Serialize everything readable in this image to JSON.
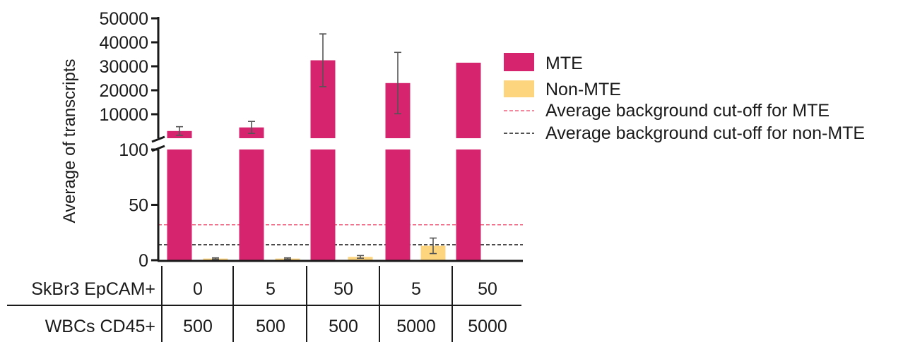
{
  "chart_data": {
    "type": "bar",
    "ylabel": "Average of transcripts",
    "y_axis_broken": true,
    "y_lower_range": [
      0,
      100
    ],
    "y_upper_range": [
      0,
      50000
    ],
    "y_lower_ticks": [
      "0",
      "50",
      "100"
    ],
    "y_upper_ticks": [
      "10000",
      "20000",
      "30000",
      "40000",
      "50000"
    ],
    "groups": [
      {
        "skbr3": "0",
        "wbcs": "500"
      },
      {
        "skbr3": "5",
        "wbcs": "500"
      },
      {
        "skbr3": "50",
        "wbcs": "500"
      },
      {
        "skbr3": "5",
        "wbcs": "5000"
      },
      {
        "skbr3": "50",
        "wbcs": "5000"
      }
    ],
    "series": [
      {
        "name": "MTE",
        "color": "#d6246e",
        "values": [
          3000,
          4500,
          32500,
          23000,
          31500
        ],
        "errors": [
          1800,
          2500,
          11000,
          12800,
          null
        ]
      },
      {
        "name": "Non-MTE",
        "color": "#fdd57e",
        "values": [
          1.5,
          1.5,
          3,
          13,
          null
        ],
        "errors": [
          0.6,
          0.6,
          1.2,
          7,
          null
        ]
      }
    ],
    "reference_lines": [
      {
        "name": "Average background cut-off for MTE",
        "value": 32,
        "color": "#f0607e"
      },
      {
        "name": "Average background cut-off for non-MTE",
        "value": 14,
        "color": "#1a1a1a"
      }
    ],
    "legend_position": "right",
    "table": {
      "row1_label": "SkBr3 EpCAM+",
      "row2_label": "WBCs CD45+"
    }
  }
}
